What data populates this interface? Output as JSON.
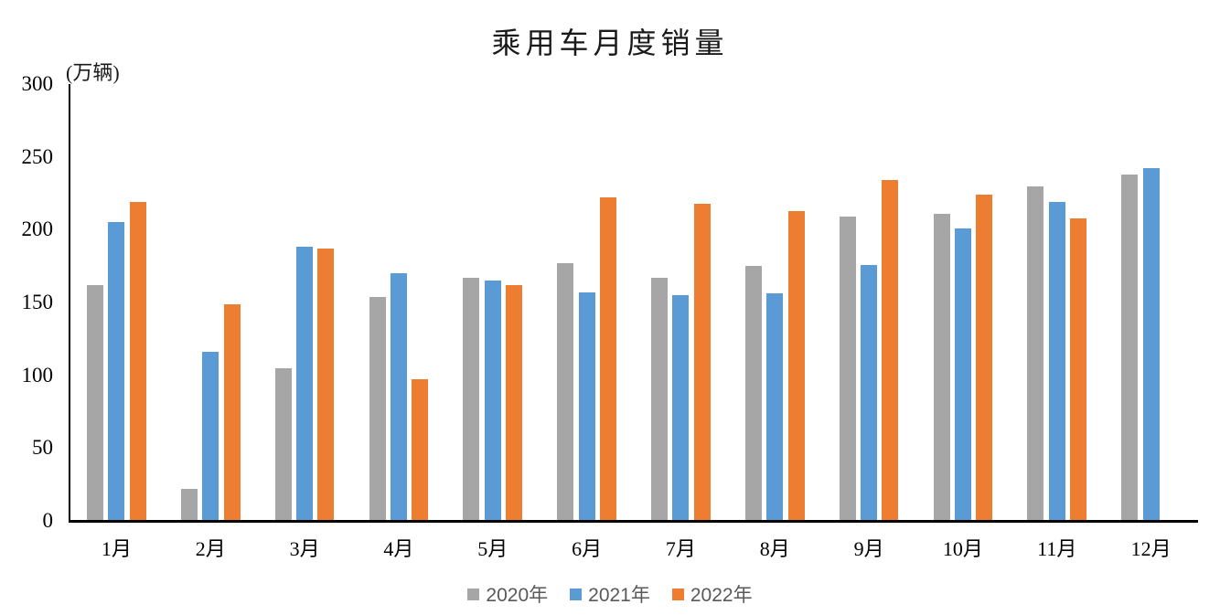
{
  "chart_data": {
    "type": "bar",
    "title": "乘用车月度销量",
    "unit_label": "(万辆)",
    "xlabel": "",
    "ylabel": "万辆",
    "categories": [
      "1月",
      "2月",
      "3月",
      "4月",
      "5月",
      "6月",
      "7月",
      "8月",
      "9月",
      "10月",
      "11月",
      "12月"
    ],
    "series": [
      {
        "name": "2020年",
        "color": "#A6A6A6",
        "values": [
          162,
          22,
          105,
          154,
          167,
          177,
          167,
          175,
          209,
          211,
          230,
          238
        ]
      },
      {
        "name": "2021年",
        "color": "#5B9BD5",
        "values": [
          205,
          116,
          188,
          170,
          165,
          157,
          155,
          156,
          176,
          201,
          219,
          242
        ]
      },
      {
        "name": "2022年",
        "color": "#ED7D31",
        "values": [
          219,
          149,
          187,
          97,
          162,
          222,
          218,
          213,
          234,
          224,
          208,
          null
        ]
      }
    ],
    "ylim": [
      0,
      300
    ],
    "y_ticks": [
      0,
      50,
      100,
      150,
      200,
      250,
      300
    ],
    "grid": false,
    "legend_position": "bottom",
    "style": {
      "background": "#FFFFFF",
      "axis_color": "#000000",
      "tick_text_color": "#000000",
      "title_color": "#1A1A1A",
      "legend_text_color": "#595959"
    }
  }
}
